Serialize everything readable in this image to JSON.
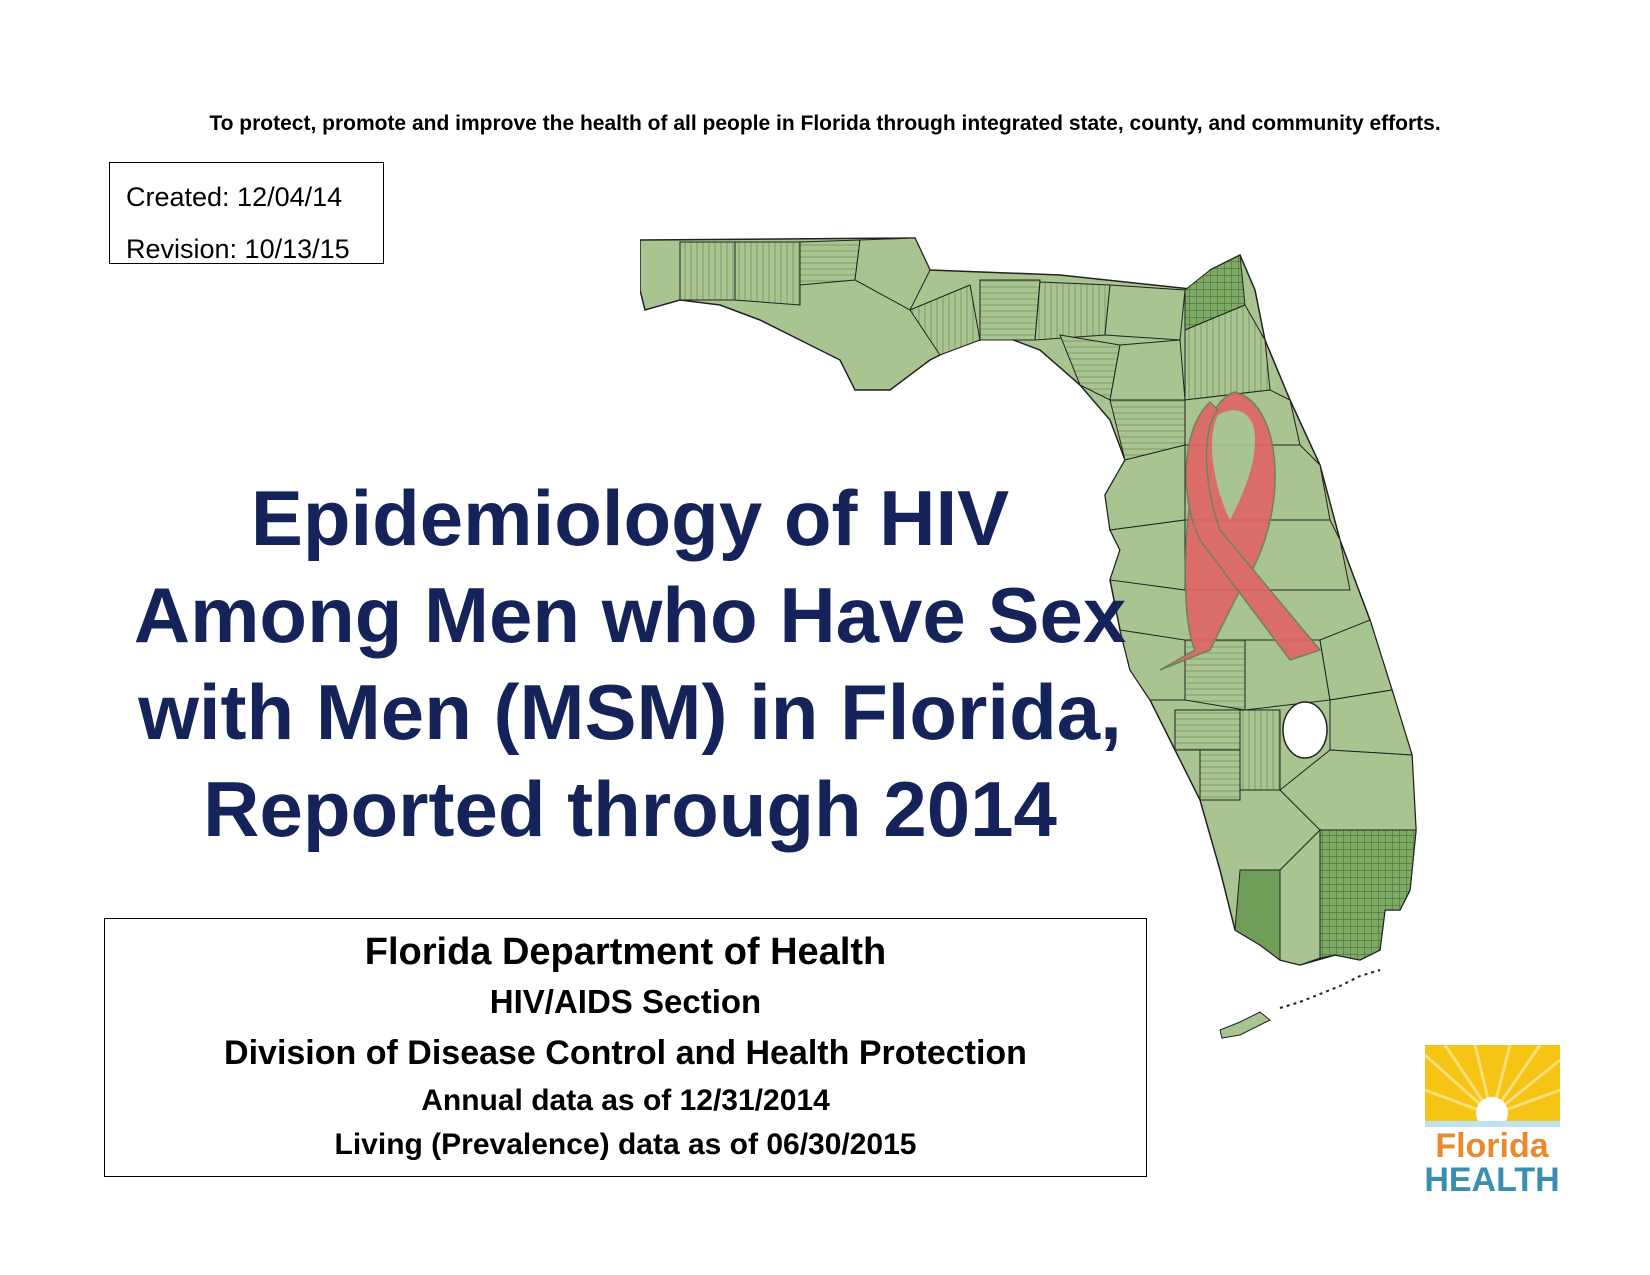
{
  "mission_statement": "To protect, promote and improve the health of all people in Florida through integrated state, county, and community efforts.",
  "dates": {
    "created": "Created: 12/04/14",
    "revision": "Revision: 10/13/15"
  },
  "title": {
    "line1": "Epidemiology of HIV",
    "line2": "Among Men who Have Sex",
    "line3": "with Men (MSM) in Florida,",
    "line4": "Reported through 2014"
  },
  "info": {
    "department": "Florida Department of Health",
    "section": "HIV/AIDS Section",
    "division": "Division of Disease Control and Health Protection",
    "annual_data": "Annual data as of 12/31/2014",
    "living_data": "Living (Prevalence) data as of 06/30/2015"
  },
  "logo": {
    "line1": "Florida",
    "line2": "HEALTH"
  },
  "colors": {
    "title": "#14245a",
    "map_fill": "#a8c490",
    "map_dark": "#6e9e58",
    "ribbon": "#e06666",
    "logo_orange": "#e88a2e",
    "logo_blue": "#3a8fb0",
    "logo_yellow": "#f6c414"
  }
}
